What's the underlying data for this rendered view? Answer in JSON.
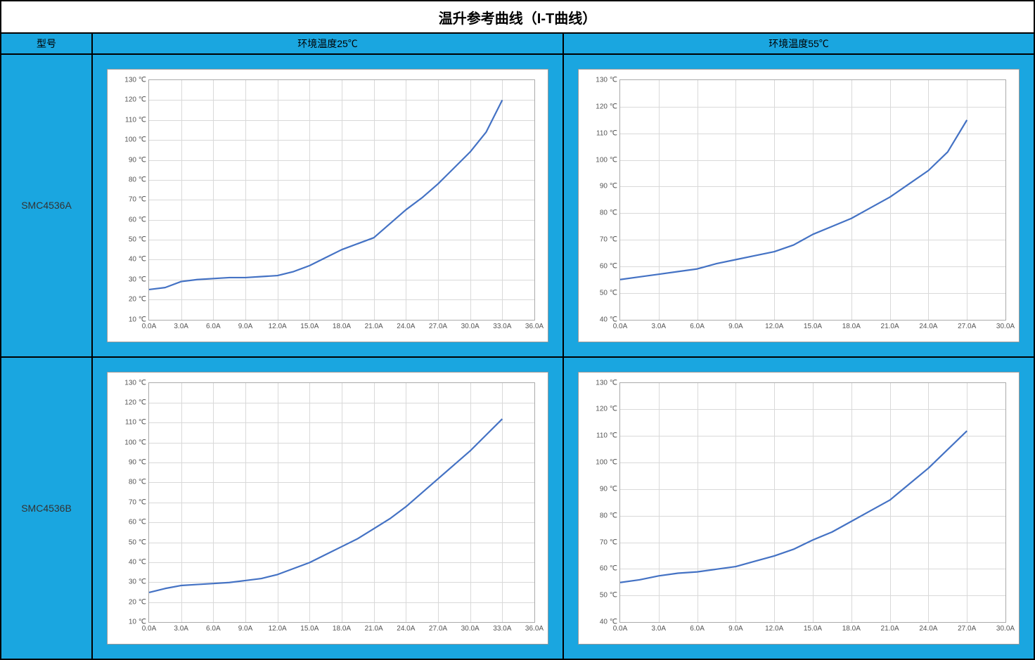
{
  "title": "温升参考曲线（I-T曲线）",
  "headers": {
    "model": "型号",
    "col25": "环境温度25℃",
    "col55": "环境温度55℃"
  },
  "colors": {
    "header_bg": "#1aa6e0",
    "cell_bg": "#1aa6e0",
    "chart_bg": "#ffffff",
    "grid": "#d9d9d9",
    "axis": "#aaaaaa",
    "line": "#4472c4",
    "text": "#555555"
  },
  "line_width": 2.2,
  "tick_fontsize": 10,
  "y_unit": "℃",
  "x_unit": "A",
  "rows": [
    {
      "model": "SMC4536A",
      "charts": [
        {
          "y_min": 10,
          "y_max": 130,
          "y_step": 10,
          "x_min": 0,
          "x_max": 36,
          "x_step": 3,
          "data": [
            [
              0,
              25
            ],
            [
              1.5,
              26
            ],
            [
              3,
              29
            ],
            [
              4.5,
              30
            ],
            [
              6,
              30.5
            ],
            [
              7.5,
              31
            ],
            [
              9,
              31
            ],
            [
              10.5,
              31.5
            ],
            [
              12,
              32
            ],
            [
              13.5,
              34
            ],
            [
              15,
              37
            ],
            [
              16.5,
              41
            ],
            [
              18,
              45
            ],
            [
              19.5,
              48
            ],
            [
              21,
              51
            ],
            [
              22.5,
              58
            ],
            [
              24,
              65
            ],
            [
              25.5,
              71
            ],
            [
              27,
              78
            ],
            [
              28.5,
              86
            ],
            [
              30,
              94
            ],
            [
              31.5,
              104
            ],
            [
              33,
              120
            ]
          ]
        },
        {
          "y_min": 40,
          "y_max": 130,
          "y_step": 10,
          "x_min": 0,
          "x_max": 30,
          "x_step": 3,
          "data": [
            [
              0,
              55
            ],
            [
              1.5,
              56
            ],
            [
              3,
              57
            ],
            [
              4.5,
              58
            ],
            [
              6,
              59
            ],
            [
              7.5,
              61
            ],
            [
              9,
              62.5
            ],
            [
              10.5,
              64
            ],
            [
              12,
              65.5
            ],
            [
              13.5,
              68
            ],
            [
              15,
              72
            ],
            [
              16.5,
              75
            ],
            [
              18,
              78
            ],
            [
              19.5,
              82
            ],
            [
              21,
              86
            ],
            [
              22.5,
              91
            ],
            [
              24,
              96
            ],
            [
              25.5,
              103
            ],
            [
              27,
              115
            ]
          ]
        }
      ]
    },
    {
      "model": "SMC4536B",
      "charts": [
        {
          "y_min": 10,
          "y_max": 130,
          "y_step": 10,
          "x_min": 0,
          "x_max": 36,
          "x_step": 3,
          "data": [
            [
              0,
              25
            ],
            [
              1.5,
              27
            ],
            [
              3,
              28.5
            ],
            [
              4.5,
              29
            ],
            [
              6,
              29.5
            ],
            [
              7.5,
              30
            ],
            [
              9,
              31
            ],
            [
              10.5,
              32
            ],
            [
              12,
              34
            ],
            [
              13.5,
              37
            ],
            [
              15,
              40
            ],
            [
              16.5,
              44
            ],
            [
              18,
              48
            ],
            [
              19.5,
              52
            ],
            [
              21,
              57
            ],
            [
              22.5,
              62
            ],
            [
              24,
              68
            ],
            [
              25.5,
              75
            ],
            [
              27,
              82
            ],
            [
              28.5,
              89
            ],
            [
              30,
              96
            ],
            [
              31.5,
              104
            ],
            [
              33,
              112
            ]
          ]
        },
        {
          "y_min": 40,
          "y_max": 130,
          "y_step": 10,
          "x_min": 0,
          "x_max": 30,
          "x_step": 3,
          "data": [
            [
              0,
              55
            ],
            [
              1.5,
              56
            ],
            [
              3,
              57.5
            ],
            [
              4.5,
              58.5
            ],
            [
              6,
              59
            ],
            [
              7.5,
              60
            ],
            [
              9,
              61
            ],
            [
              10.5,
              63
            ],
            [
              12,
              65
            ],
            [
              13.5,
              67.5
            ],
            [
              15,
              71
            ],
            [
              16.5,
              74
            ],
            [
              18,
              78
            ],
            [
              19.5,
              82
            ],
            [
              21,
              86
            ],
            [
              22.5,
              92
            ],
            [
              24,
              98
            ],
            [
              25.5,
              105
            ],
            [
              27,
              112
            ]
          ]
        }
      ]
    }
  ]
}
